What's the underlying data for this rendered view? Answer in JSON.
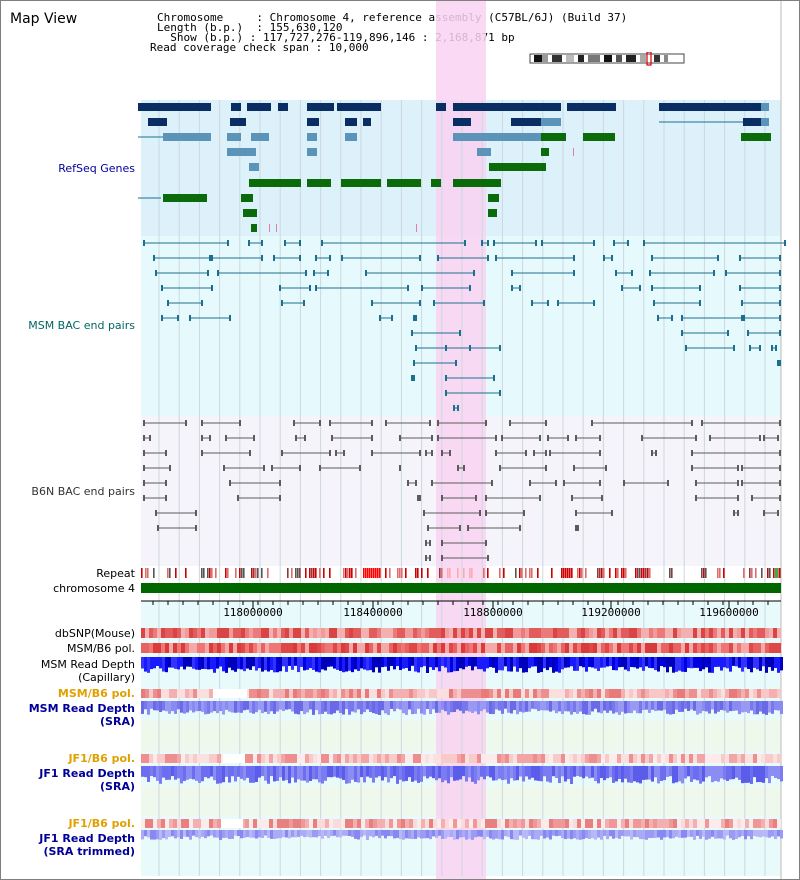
{
  "title": "Map View",
  "header": {
    "chromosome_key": "Chromosome",
    "chromosome_val": "Chromosome 4, reference assembly (C57BL/6J) (Build 37)",
    "length_key": "Length (b.p.)",
    "length_val": "155,630,120",
    "show_key": "Show (b.p.)",
    "show_val": "117,727,276-119,896,146 : 2,168,871 bp",
    "coverage_key": "Read coverage check span",
    "coverage_val": "10,000"
  },
  "tracks": {
    "refseq": "RefSeq Genes",
    "msm_bac": "MSM BAC end pairs",
    "b6n_bac": "B6N BAC end pairs",
    "repeat": "Repeat",
    "chromosome": "chromosome 4",
    "dbsnp": "dbSNP(Mouse)",
    "msm_b6_pol": "MSM/B6 pol.",
    "msm_depth_cap_1": "MSM Read Depth",
    "msm_depth_cap_2": "(Capillary)",
    "msm_b6_pol_sra": "MSM/B6 pol.",
    "msm_depth_sra_1": "MSM Read Depth",
    "msm_depth_sra_2": "(SRA)",
    "jf1_b6_pol": "JF1/B6 pol.",
    "jf1_depth_1": "JF1 Read Depth",
    "jf1_depth_2": "(SRA)",
    "jf1_b6_pol_t": "JF1/B6 pol.",
    "jf1_depth_t_1": "JF1 Read Depth",
    "jf1_depth_t_2": "(SRA trimmed)"
  },
  "axis": {
    "ticks": [
      "118000000",
      "118400000",
      "118800000",
      "119200000",
      "119600000"
    ]
  },
  "colors": {
    "refseq_bg": "#ddf1fb",
    "msm_bg": "#e6fafd",
    "b6n_bg": "#f4f4fa",
    "highlight": "#f9d2f2",
    "navy": "#0a2d63",
    "steel": "#5b93b9",
    "green": "#0b6b0b",
    "teal": "#1d6f8e",
    "grey": "#5c5c5c",
    "label_blue": "#000099",
    "label_teal": "#006666",
    "label_orange": "#e0a000",
    "chrom_green": "#006600"
  }
}
